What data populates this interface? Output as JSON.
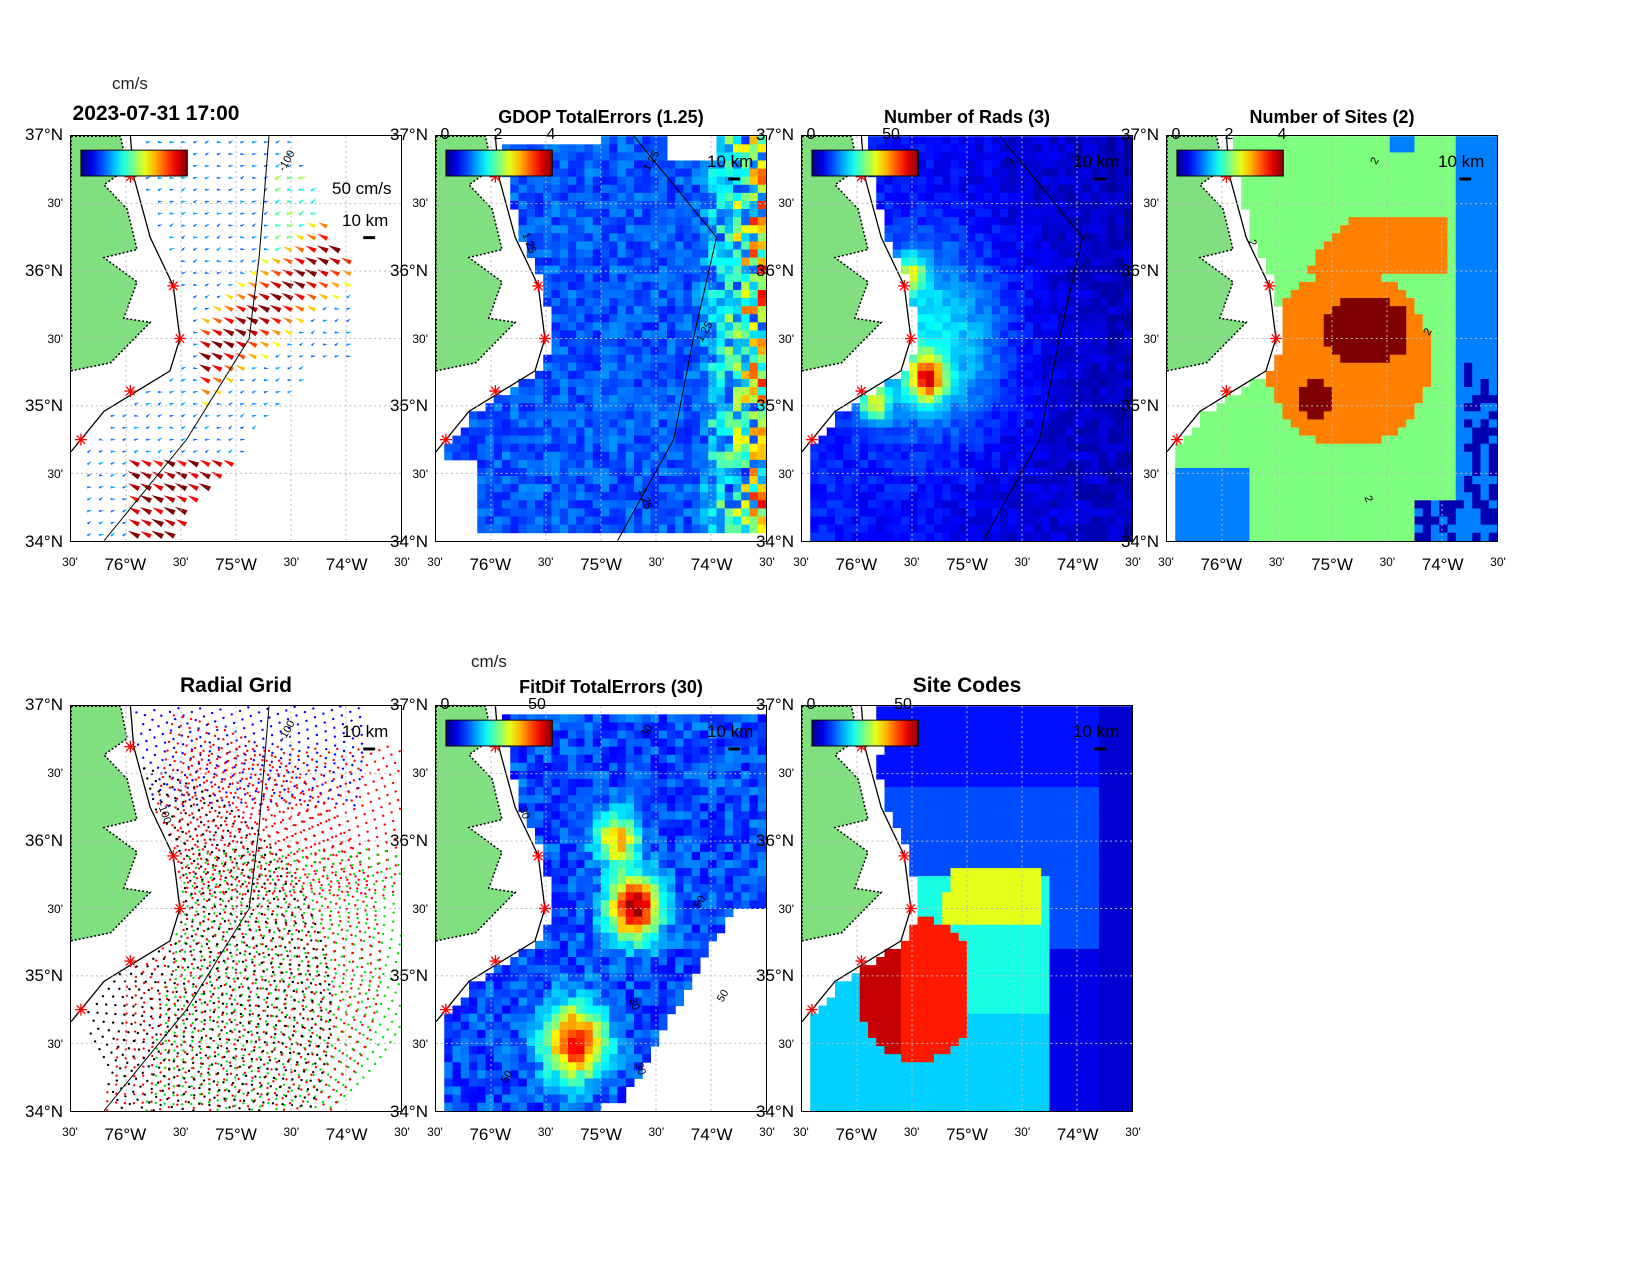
{
  "axes": {
    "lat_ticks": [
      "37°N",
      "30'",
      "36°N",
      "30'",
      "35°N",
      "30'",
      "34°N"
    ],
    "lon_ticks": [
      "30'",
      "76°W",
      "30'",
      "75°W",
      "30'",
      "74°W",
      "30'"
    ]
  },
  "panels": [
    {
      "id": "currents",
      "title": "2023-07-31 17:00",
      "unit": "cm/s",
      "cb_ticks": [],
      "scale": "10 km",
      "vector_scale": "50 cm/s",
      "contours": [
        "-100"
      ]
    },
    {
      "id": "gdop",
      "title": "GDOP TotalErrors (1.25)",
      "cb_ticks": [
        "0",
        "2",
        "4"
      ],
      "scale": "10 km",
      "contours": [
        "1.25",
        "1.25",
        "1.25",
        "1.25"
      ]
    },
    {
      "id": "rads",
      "title": "Number of Rads (3)",
      "cb_ticks": [
        "0",
        "50"
      ],
      "scale": "10 km",
      "contours": [
        "3"
      ]
    },
    {
      "id": "sites",
      "title": "Number of Sites (2)",
      "cb_ticks": [
        "0",
        "2",
        "4"
      ],
      "scale": "10 km",
      "contours": [
        "2",
        "2",
        "2",
        "2"
      ]
    },
    {
      "id": "radial",
      "title": "Radial Grid",
      "cb_ticks": [],
      "scale": "10 km",
      "contours": [
        "-100",
        "-100"
      ]
    },
    {
      "id": "fitdif",
      "title": "FitDif TotalErrors (30)",
      "unit": "cm/s",
      "cb_ticks": [
        "0",
        "50"
      ],
      "scale": "10 km",
      "contours": [
        "30",
        "30",
        "50",
        "30",
        "50",
        "30",
        "50"
      ]
    },
    {
      "id": "sitecodes",
      "title": "Site Codes",
      "cb_ticks": [
        "0",
        "50"
      ],
      "scale": "10 km",
      "contours": []
    }
  ],
  "colors": {
    "land": "#80e080",
    "site_marker": "#ff0000",
    "radial_sites": [
      "#0000ff",
      "#ff0000",
      "#00e000",
      "#ff0000",
      "#000000"
    ]
  }
}
